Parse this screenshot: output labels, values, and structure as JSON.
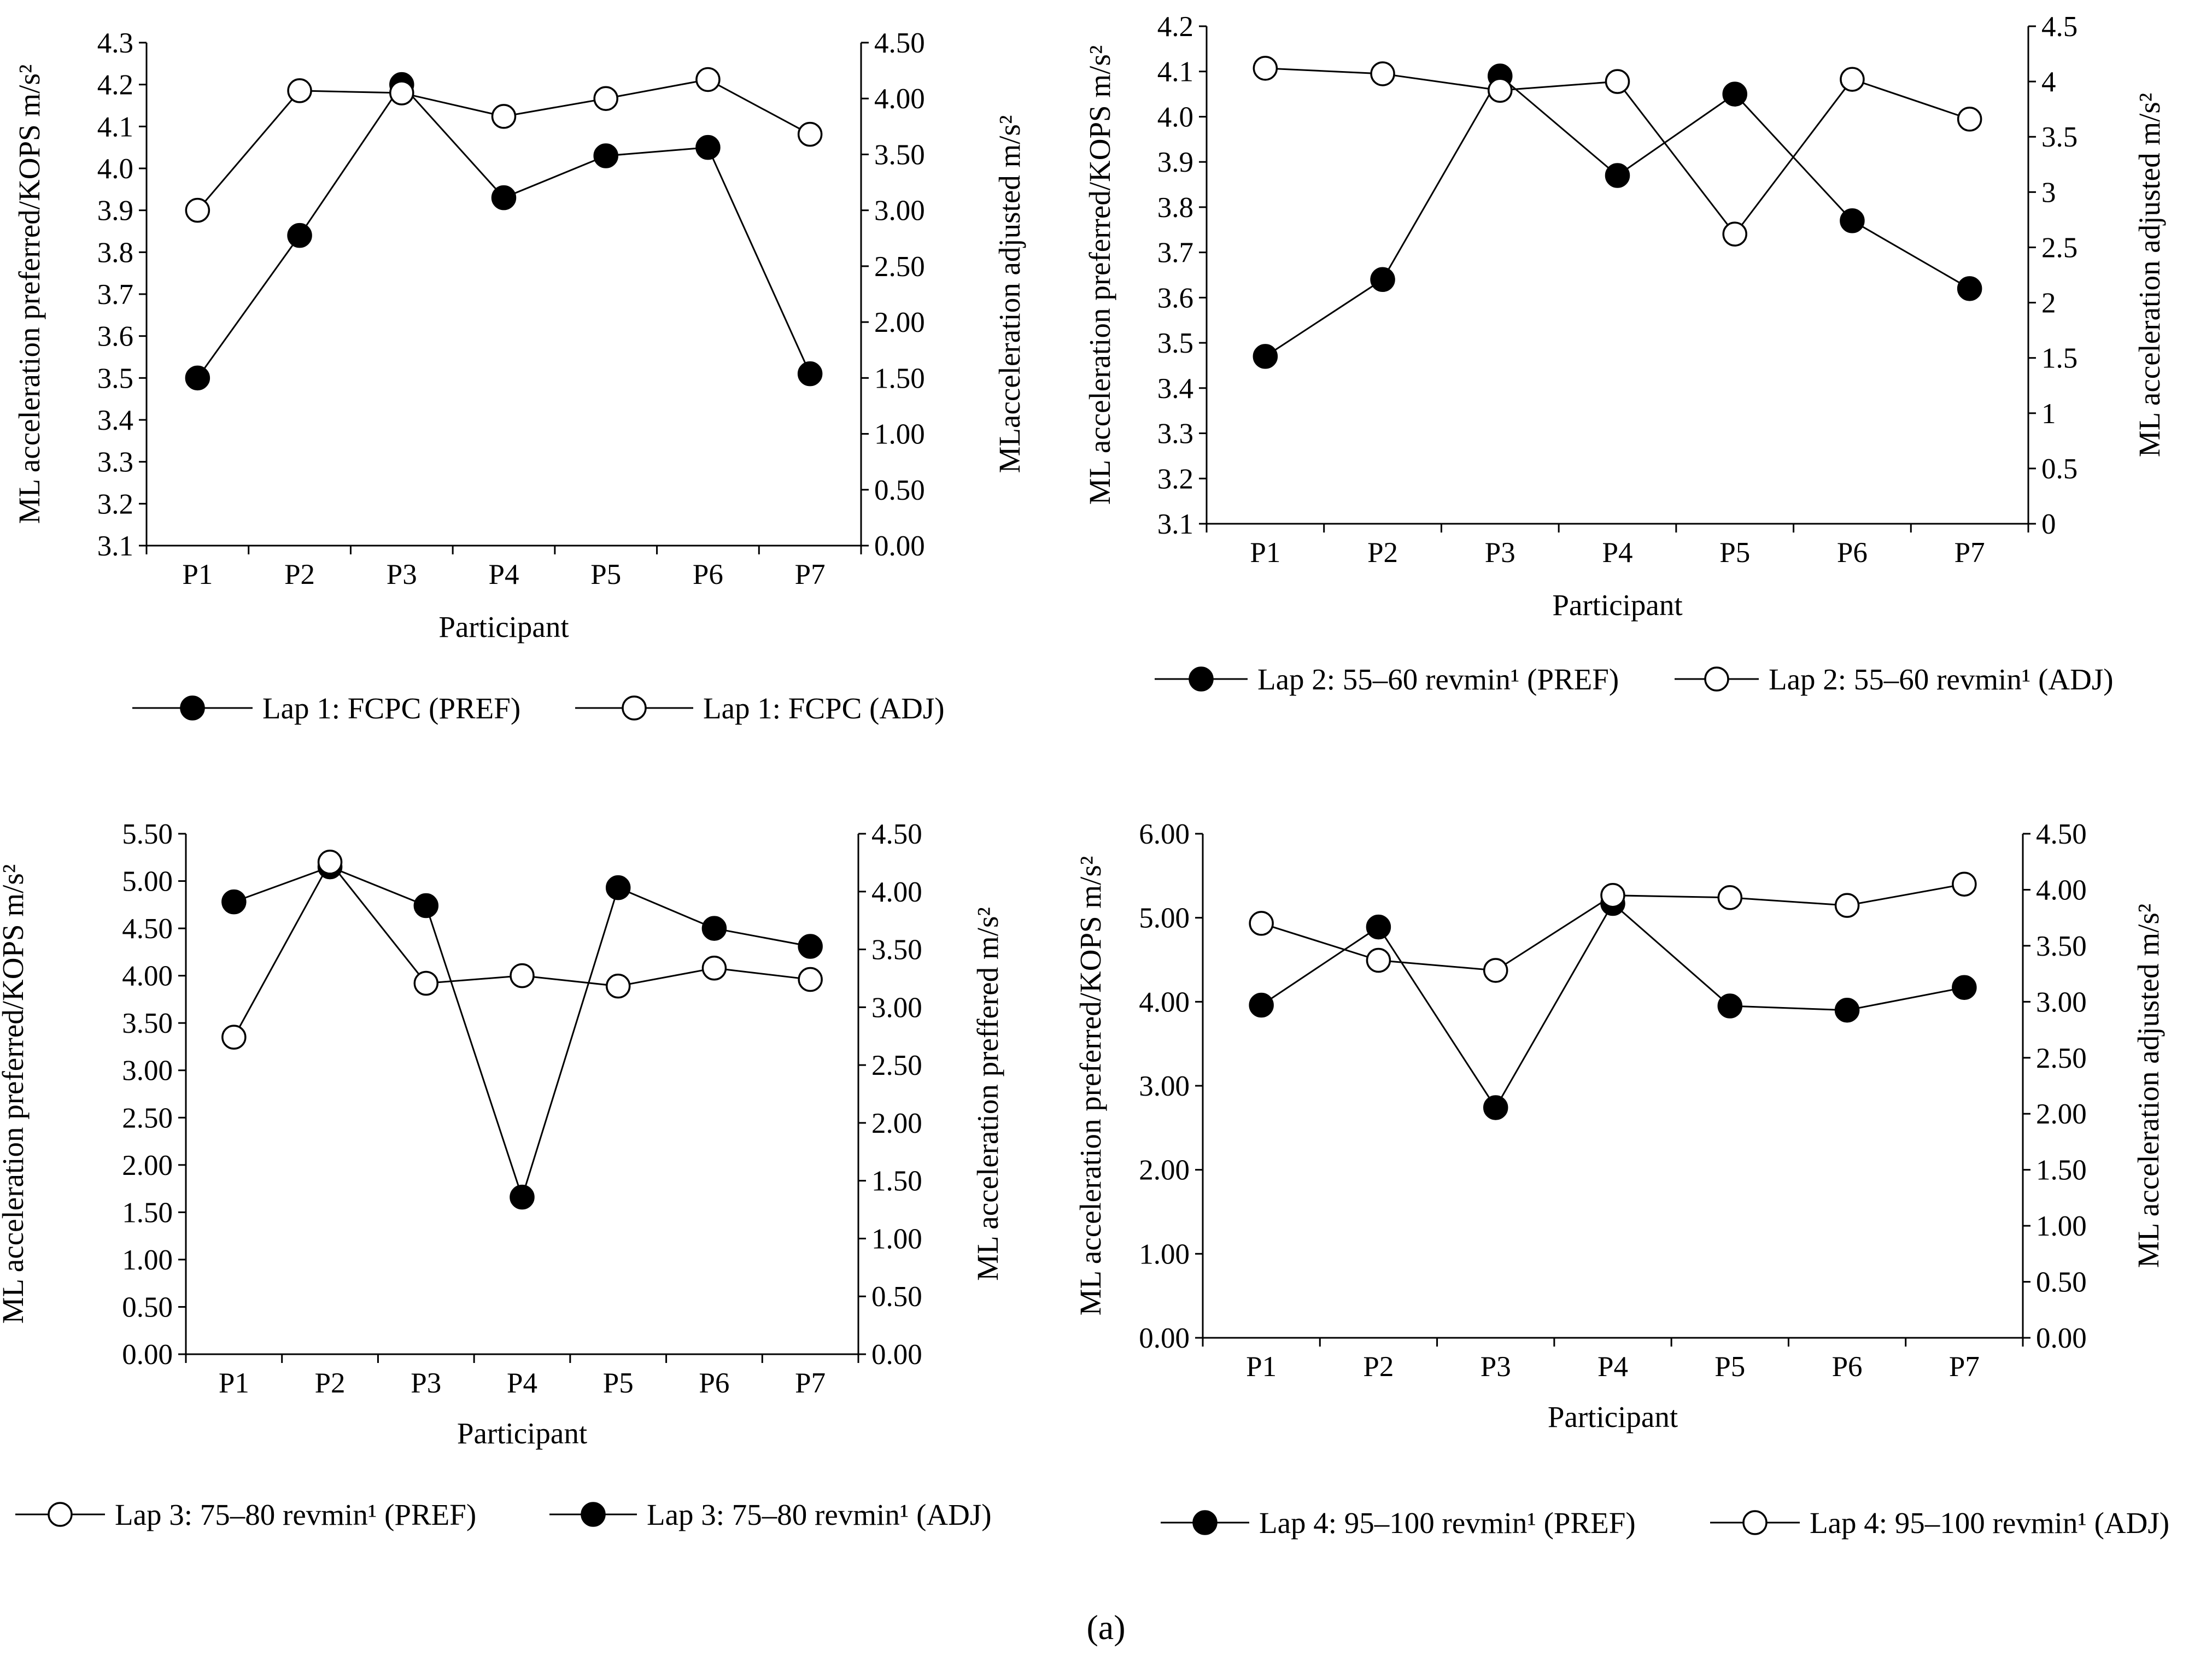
{
  "caption": "(a)",
  "chart_data": [
    {
      "type": "line",
      "xlabel": "Participant",
      "ylabel_left": "ML acceleration  preferred/KOPS m/s²",
      "ylabel_right": "MLacceleration adjusted m/s²",
      "categories": [
        "P1",
        "P2",
        "P3",
        "P4",
        "P5",
        "P6",
        "P7"
      ],
      "yleft": {
        "min": 3.1,
        "max": 4.3,
        "step": 0.1,
        "ticks": [
          "3.1",
          "3.2",
          "3.3",
          "3.4",
          "3.5",
          "3.6",
          "3.7",
          "3.8",
          "3.9",
          "4.0",
          "4.1",
          "4.2",
          "4.3"
        ]
      },
      "yright": {
        "min": 0,
        "max": 4.5,
        "step": 0.5,
        "ticks": [
          "0.00",
          "0.50",
          "1.00",
          "1.50",
          "2.00",
          "2.50",
          "3.00",
          "3.50",
          "4.00",
          "4.50"
        ]
      },
      "series": [
        {
          "name": "Lap 1: FCPC (PREF)",
          "marker": "filled",
          "axis": "left",
          "values": [
            3.5,
            3.84,
            4.2,
            3.93,
            4.03,
            4.05,
            3.51
          ]
        },
        {
          "name": "Lap 1: FCPC (ADJ)",
          "marker": "open",
          "axis": "right",
          "values": [
            3.0,
            4.07,
            4.05,
            3.84,
            4.0,
            4.17,
            3.68
          ]
        }
      ],
      "legend_order": [
        0,
        1
      ]
    },
    {
      "type": "line",
      "xlabel": "Participant",
      "ylabel_left": "ML acceleration preferred/KOPS m/s²",
      "ylabel_right": "ML acceleration adjusted m/s²",
      "categories": [
        "P1",
        "P2",
        "P3",
        "P4",
        "P5",
        "P6",
        "P7"
      ],
      "yleft": {
        "min": 3.1,
        "max": 4.2,
        "step": 0.1,
        "ticks": [
          "3.1",
          "3.2",
          "3.3",
          "3.4",
          "3.5",
          "3.6",
          "3.7",
          "3.8",
          "3.9",
          "4.0",
          "4.1",
          "4.2"
        ]
      },
      "yright": {
        "min": 0,
        "max": 4.5,
        "step": 0.5,
        "ticks": [
          "0",
          "0.5",
          "1",
          "1.5",
          "2",
          "2.5",
          "3",
          "3.5",
          "4",
          "4.5"
        ]
      },
      "series": [
        {
          "name": "Lap 2: 55–60 revmin¹ (PREF)",
          "marker": "filled",
          "axis": "left",
          "values": [
            3.47,
            3.64,
            4.09,
            3.87,
            4.05,
            3.77,
            3.62
          ]
        },
        {
          "name": "Lap 2: 55–60 revmin¹ (ADJ)",
          "marker": "open",
          "axis": "right",
          "values": [
            4.12,
            4.07,
            3.92,
            4.0,
            2.62,
            4.02,
            3.66
          ]
        }
      ],
      "legend_order": [
        0,
        1
      ]
    },
    {
      "type": "line",
      "xlabel": "Participant",
      "ylabel_left": "ML acceleration preferred/KOPS m/s²",
      "ylabel_right": "ML acceleration preffered m/s²",
      "categories": [
        "P1",
        "P2",
        "P3",
        "P4",
        "P5",
        "P6",
        "P7"
      ],
      "yleft": {
        "min": 0,
        "max": 5.5,
        "step": 0.5,
        "ticks": [
          "0.00",
          "0.50",
          "1.00",
          "1.50",
          "2.00",
          "2.50",
          "3.00",
          "3.50",
          "4.00",
          "4.50",
          "5.00",
          "5.50"
        ]
      },
      "yright": {
        "min": 0,
        "max": 4.5,
        "step": 0.5,
        "ticks": [
          "0.00",
          "0.50",
          "1.00",
          "1.50",
          "2.00",
          "2.50",
          "3.00",
          "3.50",
          "4.00",
          "4.50"
        ]
      },
      "series": [
        {
          "name": "Lap 3: 75–80 revmin¹ (ADJ)",
          "marker": "filled",
          "axis": "left",
          "values": [
            4.78,
            5.15,
            4.74,
            1.66,
            4.93,
            4.5,
            4.31
          ]
        },
        {
          "name": "Lap 3: 75–80 revmin¹ (PREF)",
          "marker": "open",
          "axis": "left",
          "values": [
            3.35,
            5.2,
            3.92,
            4.0,
            3.89,
            4.08,
            3.96
          ]
        }
      ],
      "legend_order": [
        1,
        0
      ]
    },
    {
      "type": "line",
      "xlabel": "Participant",
      "ylabel_left": "ML acceleration preferred/KOPS m/s²",
      "ylabel_right": "ML acceleration adjusted m/s²",
      "categories": [
        "P1",
        "P2",
        "P3",
        "P4",
        "P5",
        "P6",
        "P7"
      ],
      "yleft": {
        "min": 0,
        "max": 6,
        "step": 1,
        "ticks": [
          "0.00",
          "1.00",
          "2.00",
          "3.00",
          "4.00",
          "5.00",
          "6.00"
        ]
      },
      "yright": {
        "min": 0,
        "max": 4.5,
        "step": 0.5,
        "ticks": [
          "0.00",
          "0.50",
          "1.00",
          "1.50",
          "2.00",
          "2.50",
          "3.00",
          "3.50",
          "4.00",
          "4.50"
        ]
      },
      "series": [
        {
          "name": "Lap 4: 95–100 revmin¹ (PREF)",
          "marker": "filled",
          "axis": "left",
          "values": [
            3.96,
            4.89,
            2.74,
            5.17,
            3.95,
            3.9,
            4.17
          ]
        },
        {
          "name": "Lap 4: 95–100 revmin¹ (ADJ)",
          "marker": "open",
          "axis": "right",
          "values": [
            3.7,
            3.37,
            3.28,
            3.95,
            3.93,
            3.86,
            4.05
          ]
        }
      ],
      "legend_order": [
        0,
        1
      ]
    }
  ]
}
